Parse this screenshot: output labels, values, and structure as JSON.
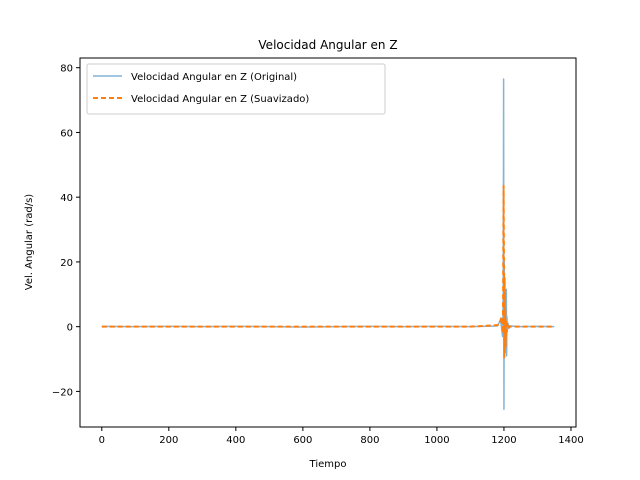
{
  "chart_data": {
    "type": "line",
    "title": "Velocidad Angular en Z",
    "xlabel": "Tiempo",
    "ylabel": "Vel. Angular (rad/s)",
    "xlim": [
      -65,
      1415
    ],
    "ylim": [
      -31,
      83
    ],
    "xticks": [
      0,
      200,
      400,
      600,
      800,
      1000,
      1200,
      1400
    ],
    "yticks": [
      -20,
      0,
      20,
      40,
      60,
      80
    ],
    "grid": false,
    "legend_position": "top-left",
    "series": [
      {
        "name": "Velocidad Angular en Z (Original)",
        "color": "#1f77b4",
        "style": "solid",
        "x": [
          0,
          100,
          200,
          300,
          400,
          500,
          600,
          700,
          800,
          900,
          1000,
          1100,
          1180,
          1190,
          1196,
          1198,
          1199,
          1200,
          1201,
          1202,
          1203,
          1205,
          1207,
          1208,
          1209,
          1210,
          1212,
          1215,
          1220,
          1250,
          1300,
          1350
        ],
        "y": [
          0.1,
          0.0,
          0.1,
          0.0,
          0.1,
          0.0,
          -0.1,
          0.0,
          0.1,
          0.0,
          0.1,
          0.0,
          0.2,
          2.0,
          -3.0,
          10.0,
          76.5,
          -25.5,
          20.0,
          -5.0,
          5.0,
          -8.0,
          11.5,
          -9.0,
          3.0,
          -1.5,
          1.0,
          -0.5,
          0.2,
          0.0,
          0.1,
          0.0
        ]
      },
      {
        "name": "Velocidad Angular en Z (Suavizado)",
        "color": "#ff7f0e",
        "style": "dashed",
        "x": [
          0,
          100,
          200,
          300,
          400,
          500,
          600,
          700,
          800,
          900,
          1000,
          1100,
          1185,
          1193,
          1197,
          1199,
          1200,
          1201,
          1202,
          1203,
          1204,
          1205,
          1206,
          1207,
          1209,
          1212,
          1216,
          1220,
          1250,
          1300,
          1350
        ],
        "y": [
          0.0,
          0.0,
          0.0,
          0.0,
          0.0,
          0.0,
          0.0,
          0.0,
          0.0,
          0.0,
          0.0,
          0.0,
          0.5,
          3.0,
          -2.0,
          43.5,
          20.0,
          -9.5,
          15.0,
          -3.0,
          5.0,
          -6.0,
          2.0,
          -3.0,
          1.0,
          -0.5,
          0.2,
          0.0,
          0.0,
          0.0,
          0.0
        ]
      }
    ]
  }
}
